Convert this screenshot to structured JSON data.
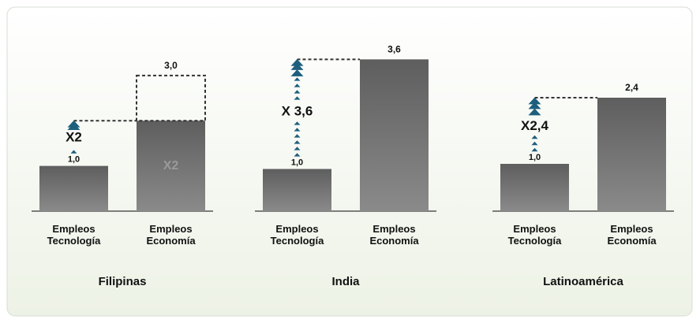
{
  "chart_data": [
    {
      "type": "bar",
      "title": "Filipinas",
      "categories": [
        "Empleos Tecnología",
        "Empleos Economía"
      ],
      "values": [
        1.0,
        3.0
      ],
      "value_labels": [
        "1,0",
        "3,0"
      ],
      "solid_values": [
        1.0,
        2.0
      ],
      "arrow_label": "X2",
      "bar_label": "X2",
      "ylim": [
        0,
        3.45
      ],
      "color": "#6e6e6e",
      "arrow_color": "#1d5f7c"
    },
    {
      "type": "bar",
      "title": "India",
      "categories": [
        "Empleos Tecnología",
        "Empleos Economía"
      ],
      "values": [
        1.0,
        3.6
      ],
      "value_labels": [
        "1,0",
        "3,6"
      ],
      "solid_values": [
        1.0,
        3.6
      ],
      "arrow_label": "X 3,6",
      "ylim": [
        0,
        3.7
      ],
      "color": "#6e6e6e",
      "arrow_color": "#1d5f7c"
    },
    {
      "type": "bar",
      "title": "Latinoamérica",
      "categories": [
        "Empleos Tecnología",
        "Empleos Economía"
      ],
      "values": [
        1.0,
        2.4
      ],
      "value_labels": [
        "1,0",
        "2,4"
      ],
      "solid_values": [
        1.0,
        2.4
      ],
      "arrow_label": "X2,4",
      "ylim": [
        0,
        3.3
      ],
      "color": "#6e6e6e",
      "arrow_color": "#1d5f7c"
    }
  ]
}
